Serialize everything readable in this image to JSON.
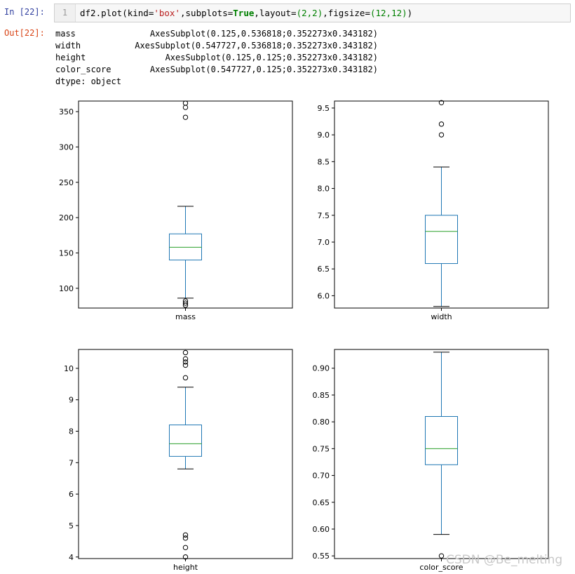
{
  "cell": {
    "in_prompt": "In  [22]:",
    "out_prompt": "Out[22]:",
    "line_number": "1",
    "code_parts": {
      "fn": "df2.plot(kind=",
      "kind_value": "'box'",
      "subplots_label": ",subplots=",
      "subplots_value": "True",
      "layout_label": ",layout=",
      "layout_value": "(2,2)",
      "figsize_label": ",figsize=",
      "figsize_value": "(12,12)",
      "close": ")"
    }
  },
  "output": {
    "rows": [
      {
        "name": "mass",
        "value": "AxesSubplot(0.125,0.536818;0.352273x0.343182)"
      },
      {
        "name": "width",
        "value": "AxesSubplot(0.547727,0.536818;0.352273x0.343182)"
      },
      {
        "name": "height",
        "value": "AxesSubplot(0.125,0.125;0.352273x0.343182)"
      },
      {
        "name": "color_score",
        "value": "AxesSubplot(0.547727,0.125;0.352273x0.343182)"
      }
    ],
    "dtype": "dtype: object"
  },
  "colors": {
    "box": "#1f77b4",
    "median": "#2ca02c",
    "whisker": "#1f77b4",
    "cap": "#000000",
    "flier": "#000000"
  },
  "chart_data": [
    {
      "type": "box",
      "xlabel": "mass",
      "ylim": [
        72,
        365
      ],
      "yticks": [
        100,
        150,
        200,
        250,
        300,
        350
      ],
      "tick_labels": [
        "100",
        "150",
        "200",
        "250",
        "300",
        "350"
      ],
      "q1": 140,
      "median": 158,
      "q3": 177,
      "whisker_low": 86,
      "whisker_high": 216,
      "fliers": [
        76,
        79,
        82,
        342,
        356,
        362
      ]
    },
    {
      "type": "box",
      "xlabel": "width",
      "ylim": [
        5.77,
        9.63
      ],
      "yticks": [
        6.0,
        6.5,
        7.0,
        7.5,
        8.0,
        8.5,
        9.0,
        9.5
      ],
      "tick_labels": [
        "6.0",
        "6.5",
        "7.0",
        "7.5",
        "8.0",
        "8.5",
        "9.0",
        "9.5"
      ],
      "q1": 6.6,
      "median": 7.2,
      "q3": 7.5,
      "whisker_low": 5.8,
      "whisker_high": 8.4,
      "fliers": [
        9.0,
        9.2,
        9.6
      ]
    },
    {
      "type": "box",
      "xlabel": "height",
      "ylim": [
        3.95,
        10.6
      ],
      "yticks": [
        4,
        5,
        6,
        7,
        8,
        9,
        10
      ],
      "tick_labels": [
        "4",
        "5",
        "6",
        "7",
        "8",
        "9",
        "10"
      ],
      "q1": 7.2,
      "median": 7.6,
      "q3": 8.2,
      "whisker_low": 6.8,
      "whisker_high": 9.4,
      "fliers": [
        4.0,
        4.3,
        4.6,
        4.7,
        9.7,
        10.1,
        10.2,
        10.3,
        10.5
      ]
    },
    {
      "type": "box",
      "xlabel": "color_score",
      "ylim": [
        0.545,
        0.935
      ],
      "yticks": [
        0.55,
        0.6,
        0.65,
        0.7,
        0.75,
        0.8,
        0.85,
        0.9
      ],
      "tick_labels": [
        "0.55",
        "0.60",
        "0.65",
        "0.70",
        "0.75",
        "0.80",
        "0.85",
        "0.90"
      ],
      "q1": 0.72,
      "median": 0.75,
      "q3": 0.81,
      "whisker_low": 0.59,
      "whisker_high": 0.93,
      "fliers": [
        0.55
      ]
    }
  ],
  "watermark": "CSDN @Be_melting"
}
